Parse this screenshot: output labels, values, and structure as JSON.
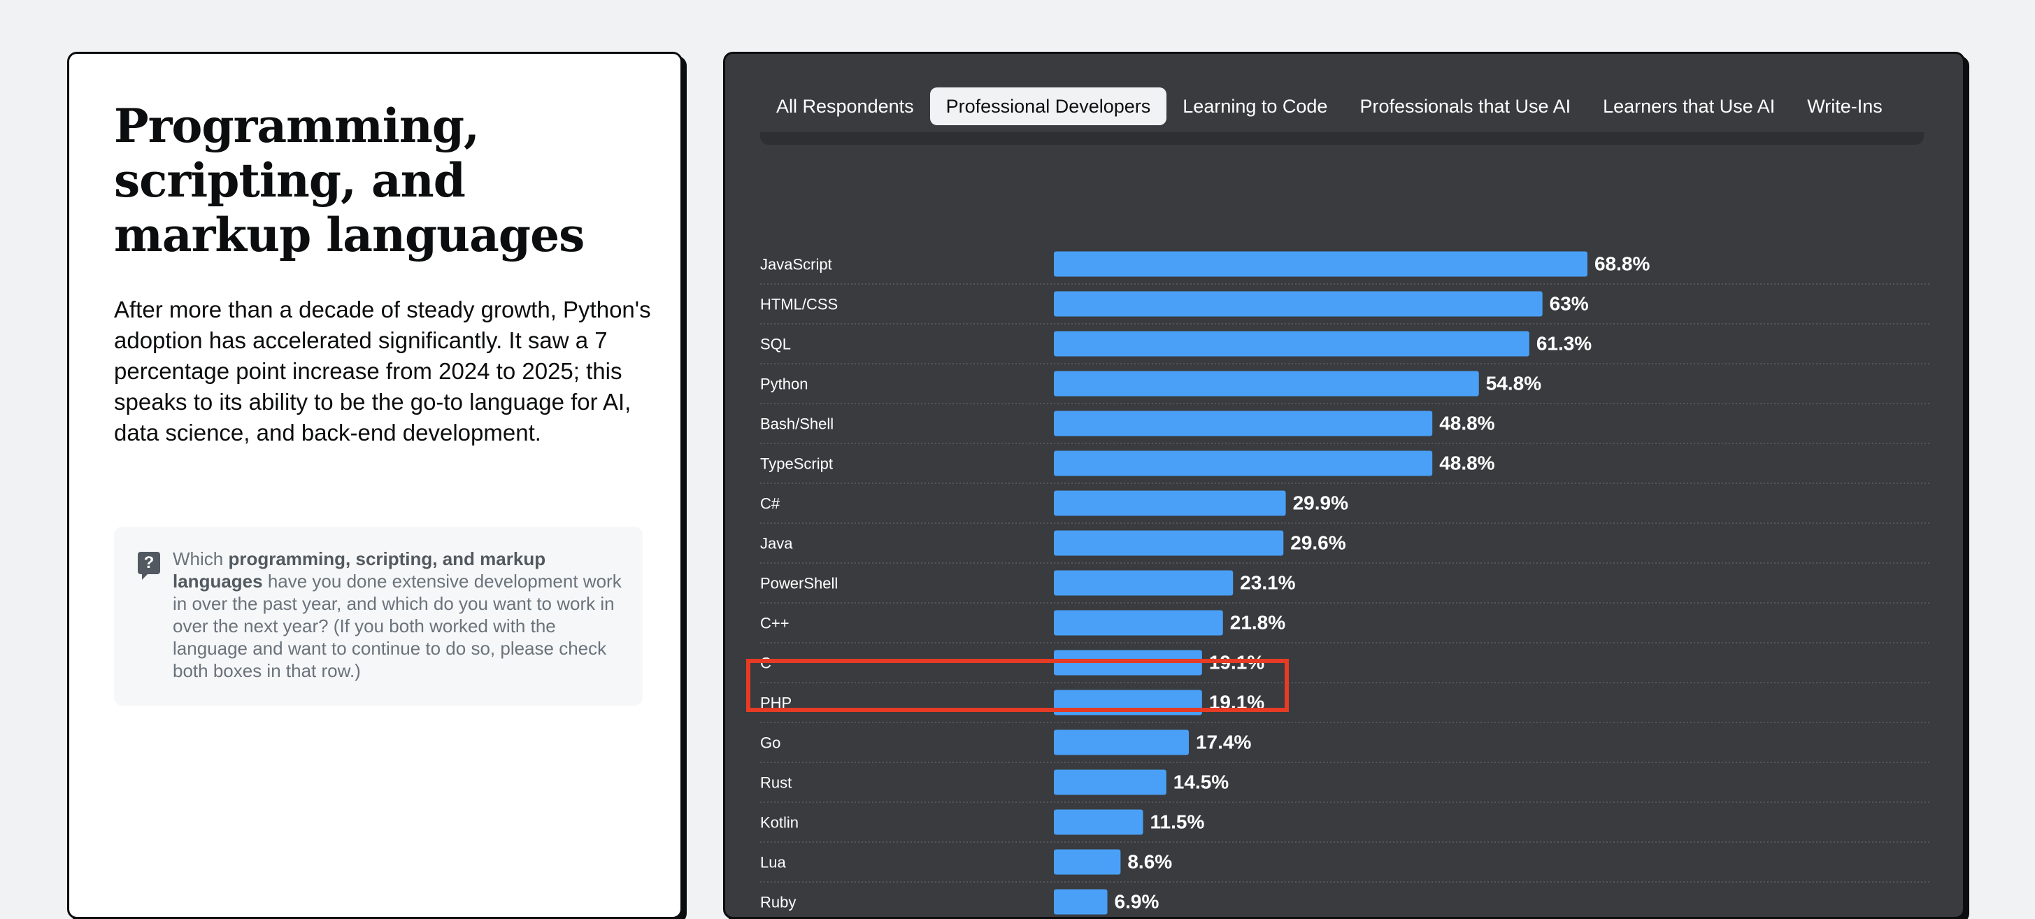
{
  "left": {
    "title": "Programming, scripting, and markup languages",
    "summary": "After more than a decade of steady growth, Python's adoption has accelerated significantly. It saw a 7 percentage point increase from 2024 to 2025; this speaks to its ability to be the go-to language for AI, data science, and back-end development.",
    "question": {
      "icon": "question-icon",
      "prefix": "Which ",
      "bold": "programming, scripting, and markup languages",
      "suffix": " have you done extensive development work in over the past year, and which do you want to work in over the next year? (If you both worked with the language and want to continue to do so, please check both boxes in that row.)"
    }
  },
  "tabs": [
    {
      "label": "All Respondents",
      "active": false
    },
    {
      "label": "Professional Developers",
      "active": true
    },
    {
      "label": "Learning to Code",
      "active": false
    },
    {
      "label": "Professionals that Use AI",
      "active": false
    },
    {
      "label": "Learners that Use AI",
      "active": false
    },
    {
      "label": "Write-Ins",
      "active": false
    }
  ],
  "colors": {
    "bar": "#4aa0f7",
    "panel": "#393b3e",
    "highlight": "#e63b24"
  },
  "highlighted_category": "PHP",
  "chart_data": {
    "type": "bar",
    "orientation": "horizontal",
    "categories": [
      "JavaScript",
      "HTML/CSS",
      "SQL",
      "Python",
      "Bash/Shell",
      "TypeScript",
      "C#",
      "Java",
      "PowerShell",
      "C++",
      "C",
      "PHP",
      "Go",
      "Rust",
      "Kotlin",
      "Lua",
      "Ruby"
    ],
    "values": [
      68.8,
      63,
      61.3,
      54.8,
      48.8,
      48.8,
      29.9,
      29.6,
      23.1,
      21.8,
      19.1,
      19.1,
      17.4,
      14.5,
      11.5,
      8.6,
      6.9
    ],
    "value_labels": [
      "68.8%",
      "63%",
      "61.3%",
      "54.8%",
      "48.8%",
      "48.8%",
      "29.9%",
      "29.6%",
      "23.1%",
      "21.8%",
      "19.1%",
      "19.1%",
      "17.4%",
      "14.5%",
      "11.5%",
      "8.6%",
      "6.9%"
    ],
    "unit": "%",
    "xlim": [
      0,
      100
    ],
    "title": "",
    "xlabel": "",
    "ylabel": ""
  }
}
